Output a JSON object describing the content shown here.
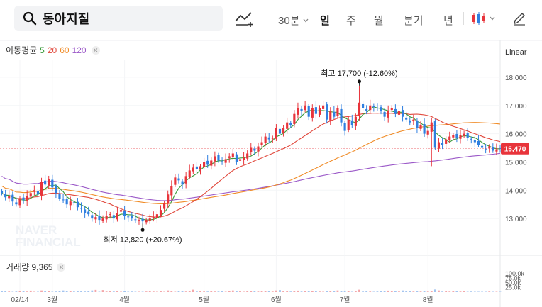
{
  "search": {
    "query": "동아지질"
  },
  "toolbar": {
    "interval_label": "30분",
    "tabs": [
      "일",
      "주",
      "월",
      "분기",
      "년"
    ],
    "active_tab": "일"
  },
  "legend": {
    "ma_title": "이동평균",
    "ma_periods": [
      {
        "label": "5",
        "color": "#3a9a3a"
      },
      {
        "label": "20",
        "color": "#e0463a"
      },
      {
        "label": "60",
        "color": "#f08c28"
      },
      {
        "label": "120",
        "color": "#9b59c8"
      }
    ],
    "scale_mode": "Linear",
    "volume_label": "거래량 9,365"
  },
  "colors": {
    "up": "#e8343b",
    "down": "#2f7fe0",
    "ma5": "#3a9a3a",
    "ma20": "#e0463a",
    "ma60": "#f08c28",
    "ma120": "#9b59c8"
  },
  "watermark": [
    "NAVER",
    "FINANCIAL"
  ],
  "chart_data": {
    "type": "candlestick",
    "y_ticks": [
      "18,000",
      "17,000",
      "16,000",
      "15,000",
      "14,000",
      "13,000"
    ],
    "y_tick_values": [
      18000,
      17000,
      16000,
      15000,
      14000,
      13000
    ],
    "ylim": [
      12200,
      18600
    ],
    "x_labels": [
      {
        "label": "02/14",
        "index": 5
      },
      {
        "label": "3월",
        "index": 14
      },
      {
        "label": "4월",
        "index": 34
      },
      {
        "label": "5월",
        "index": 56
      },
      {
        "label": "6월",
        "index": 76
      },
      {
        "label": "7월",
        "index": 95
      },
      {
        "label": "8월",
        "index": 118
      }
    ],
    "current_price": {
      "label": "15,470",
      "value": 15470
    },
    "high": {
      "label": "최고 17,700 (-12.60%)",
      "value": 17700,
      "index": 99
    },
    "low": {
      "label": "최저 12,820 (+20.67%)",
      "value": 12820,
      "index": 39
    },
    "close": [
      13900,
      13750,
      13800,
      13600,
      13500,
      13700,
      13650,
      13800,
      13900,
      14000,
      13850,
      14300,
      14200,
      14400,
      14100,
      13900,
      13700,
      13650,
      13500,
      13600,
      13550,
      13400,
      13350,
      13200,
      13150,
      13000,
      13050,
      12950,
      13000,
      13100,
      13150,
      13000,
      13200,
      13300,
      13100,
      13050,
      13000,
      12950,
      12950,
      12900,
      12950,
      13000,
      13050,
      13150,
      13300,
      13550,
      13850,
      14150,
      14450,
      14350,
      14200,
      14500,
      14700,
      14800,
      14750,
      14850,
      15000,
      14900,
      15050,
      15200,
      15050,
      15000,
      15100,
      15200,
      15300,
      15000,
      15100,
      15150,
      15300,
      15500,
      15400,
      15550,
      15700,
      15900,
      15800,
      15850,
      16200,
      16000,
      16200,
      16400,
      16300,
      16700,
      16900,
      16800,
      17000,
      16600,
      16900,
      16700,
      16900,
      17000,
      16500,
      16800,
      16600,
      16900,
      16400,
      16100,
      16500,
      16300,
      16600,
      17100,
      16900,
      16800,
      17000,
      16950,
      16900,
      16800,
      16600,
      16800,
      16900,
      16700,
      16800,
      16600,
      16500,
      16400,
      16500,
      16200,
      16300,
      16000,
      16100,
      16400,
      15500,
      15700,
      15600,
      15800,
      15900,
      15950,
      15850,
      15950,
      16000,
      15850,
      15800,
      15700,
      15600,
      15500,
      15450,
      15550,
      15400,
      15450,
      15470
    ],
    "volume": [
      5,
      4,
      3,
      2,
      3,
      4,
      6,
      3,
      8,
      2,
      2,
      9,
      4,
      6,
      2,
      3,
      7,
      9,
      4,
      4,
      3,
      7,
      5,
      3,
      5,
      9,
      12,
      2,
      11,
      3,
      5,
      3,
      5,
      2,
      4,
      2,
      3,
      2,
      2,
      2,
      3,
      4,
      3,
      2,
      7,
      2,
      9,
      4,
      2,
      4,
      5,
      3,
      4,
      13,
      3,
      6,
      3,
      3,
      5,
      3,
      3,
      5,
      2,
      6,
      9,
      4,
      6,
      2,
      5,
      5,
      4,
      3,
      5,
      6,
      4,
      3,
      9,
      11,
      6,
      4,
      3,
      7,
      8,
      3,
      4,
      6,
      5,
      6,
      3,
      2,
      4,
      7,
      5,
      9,
      6,
      8,
      4,
      2,
      7,
      13,
      3,
      4,
      3,
      2,
      3,
      4,
      4,
      8,
      6,
      5,
      3,
      9,
      4,
      6,
      3,
      6,
      3,
      5,
      3,
      4,
      14,
      9,
      3,
      4,
      3,
      6,
      4,
      3,
      5,
      2,
      3,
      2,
      2,
      2,
      2,
      3,
      2,
      2,
      2
    ],
    "volume_ticks": [
      "100.0k",
      "75.0k",
      "50.0k",
      "25.0k"
    ],
    "volume_tick_values": [
      100,
      75,
      50,
      25
    ],
    "volume_max": 100
  }
}
